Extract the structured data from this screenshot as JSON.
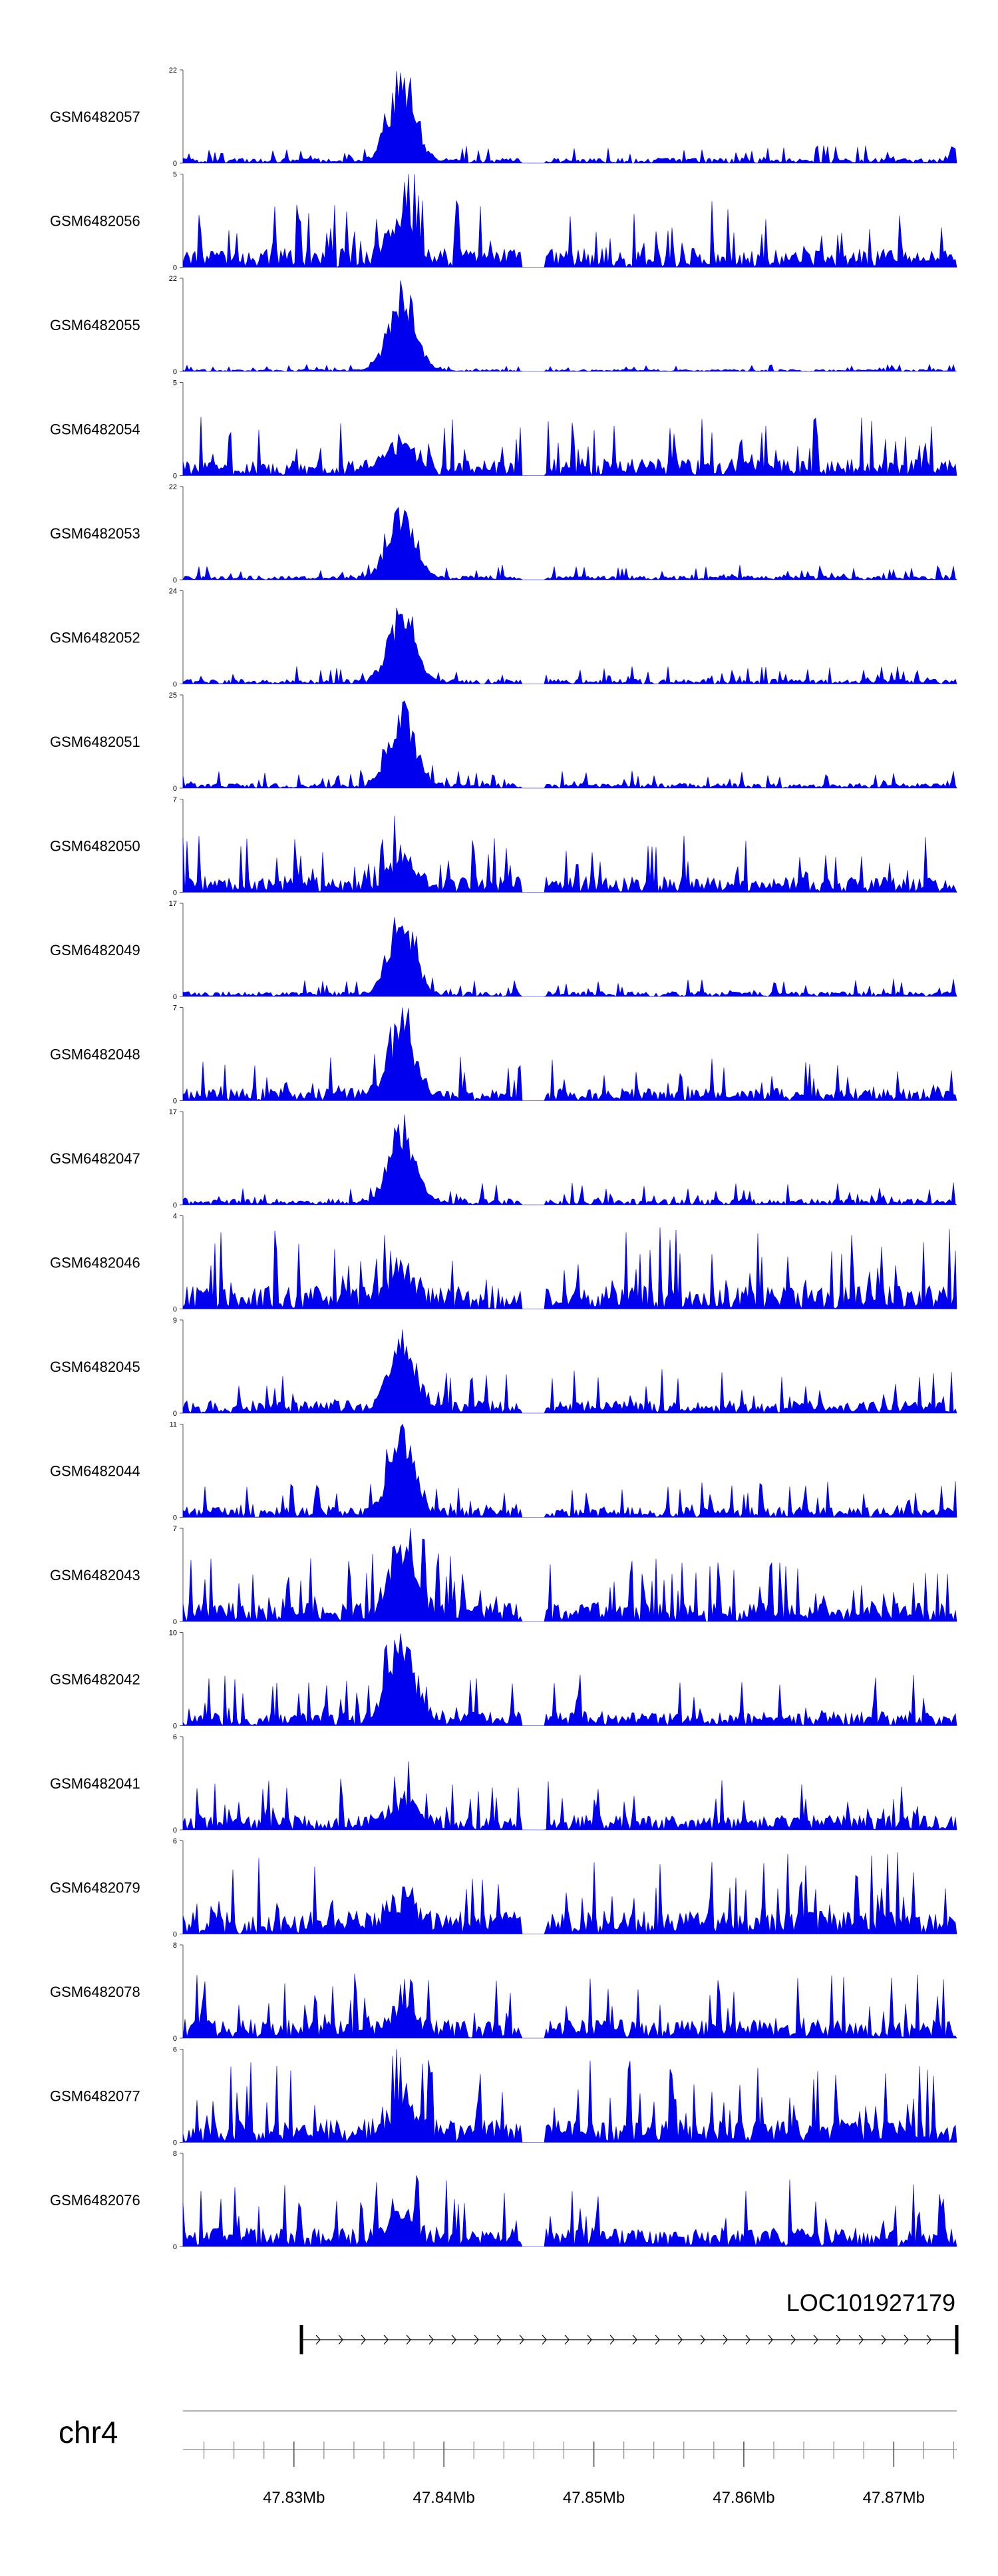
{
  "chart_data": {
    "type": "area",
    "title": "",
    "xlabel": "",
    "ylabel": "",
    "region": {
      "chromosome": "chr4",
      "start_mb": 47.8226,
      "end_mb": 47.8742
    },
    "axis": {
      "tick_labels": [
        "47.83Mb",
        "47.84Mb",
        "47.85Mb",
        "47.86Mb",
        "47.87Mb"
      ],
      "tick_values_mb": [
        47.83,
        47.84,
        47.85,
        47.86,
        47.87
      ],
      "minor_tick_step_mb": 0.002
    },
    "gene": {
      "name": "LOC101927179",
      "start_mb": 47.8305,
      "end_mb": 47.8742,
      "strand": "+"
    },
    "tracks": [
      {
        "name": "GSM6482057",
        "ymin": 0,
        "ymax": 22
      },
      {
        "name": "GSM6482056",
        "ymin": 0,
        "ymax": 5
      },
      {
        "name": "GSM6482055",
        "ymin": 0,
        "ymax": 22
      },
      {
        "name": "GSM6482054",
        "ymin": 0,
        "ymax": 5
      },
      {
        "name": "GSM6482053",
        "ymin": 0,
        "ymax": 22
      },
      {
        "name": "GSM6482052",
        "ymin": 0,
        "ymax": 24
      },
      {
        "name": "GSM6482051",
        "ymin": 0,
        "ymax": 25
      },
      {
        "name": "GSM6482050",
        "ymin": 0,
        "ymax": 7
      },
      {
        "name": "GSM6482049",
        "ymin": 0,
        "ymax": 17
      },
      {
        "name": "GSM6482048",
        "ymin": 0,
        "ymax": 7
      },
      {
        "name": "GSM6482047",
        "ymin": 0,
        "ymax": 17
      },
      {
        "name": "GSM6482046",
        "ymin": 0,
        "ymax": 4
      },
      {
        "name": "GSM6482045",
        "ymin": 0,
        "ymax": 9
      },
      {
        "name": "GSM6482044",
        "ymin": 0,
        "ymax": 11
      },
      {
        "name": "GSM6482043",
        "ymin": 0,
        "ymax": 7
      },
      {
        "name": "GSM6482042",
        "ymin": 0,
        "ymax": 10
      },
      {
        "name": "GSM6482041",
        "ymin": 0,
        "ymax": 6
      },
      {
        "name": "GSM6482079",
        "ymin": 0,
        "ymax": 6
      },
      {
        "name": "GSM6482078",
        "ymin": 0,
        "ymax": 8
      },
      {
        "name": "GSM6482077",
        "ymin": 0,
        "ymax": 6
      },
      {
        "name": "GSM6482076",
        "ymin": 0,
        "ymax": 8
      }
    ],
    "colors": {
      "signal": "#0000ee",
      "axis": "#555555",
      "gene": "#000000"
    }
  }
}
